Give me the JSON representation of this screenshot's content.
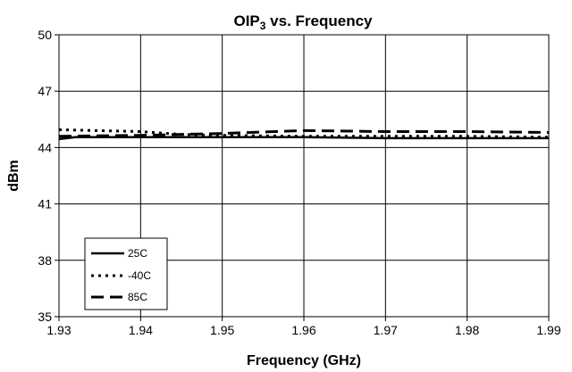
{
  "chart_data": {
    "type": "line",
    "title": {
      "main": "OIP",
      "sub": "3",
      "rest": " vs. Frequency"
    },
    "xlabel": "Frequency (GHz)",
    "ylabel": "dBm",
    "xlim": [
      1.93,
      1.99
    ],
    "ylim": [
      35,
      50
    ],
    "x_ticks": [
      "1.93",
      "1.94",
      "1.95",
      "1.96",
      "1.97",
      "1.98",
      "1.99"
    ],
    "y_ticks": [
      "35",
      "38",
      "41",
      "44",
      "47",
      "50"
    ],
    "grid": true,
    "legend_position": "bottom-left",
    "series": [
      {
        "name": "25C",
        "style": "solid",
        "color": "#000000",
        "x": [
          1.93,
          1.932,
          1.94,
          1.95,
          1.96,
          1.97,
          1.98,
          1.99
        ],
        "y": [
          44.45,
          44.55,
          44.55,
          44.55,
          44.55,
          44.5,
          44.5,
          44.5
        ]
      },
      {
        "name": "-40C",
        "style": "dotted",
        "color": "#000000",
        "x": [
          1.93,
          1.94,
          1.945,
          1.95,
          1.96,
          1.97,
          1.98,
          1.99
        ],
        "y": [
          44.95,
          44.85,
          44.7,
          44.65,
          44.6,
          44.6,
          44.6,
          44.55
        ]
      },
      {
        "name": "85C",
        "style": "dashed",
        "color": "#000000",
        "x": [
          1.93,
          1.94,
          1.95,
          1.96,
          1.97,
          1.98,
          1.99
        ],
        "y": [
          44.6,
          44.65,
          44.75,
          44.9,
          44.85,
          44.85,
          44.8
        ]
      }
    ]
  }
}
